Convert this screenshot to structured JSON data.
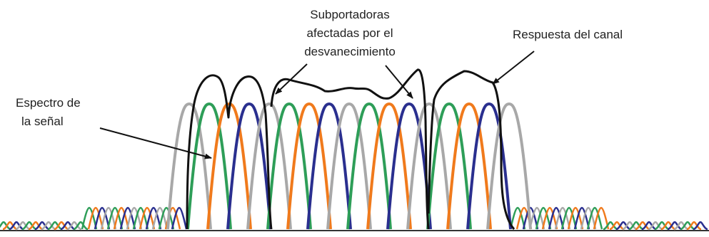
{
  "labels": {
    "subcarriers_line1": "Subportadoras",
    "subcarriers_line2": "afectadas por el",
    "subcarriers_line3": "desvanecimiento",
    "channel": "Respuesta del canal",
    "spectrum_line1": "Espectro de",
    "spectrum_line2": "la señal"
  },
  "colors": {
    "green": "#2e9e58",
    "orange": "#f07a1c",
    "blue": "#2a2f8f",
    "gray": "#a8a8a8",
    "channel": "#111111",
    "text": "#222222"
  },
  "subcarrier_color_sequence": [
    "gray",
    "green",
    "orange",
    "blue"
  ]
}
